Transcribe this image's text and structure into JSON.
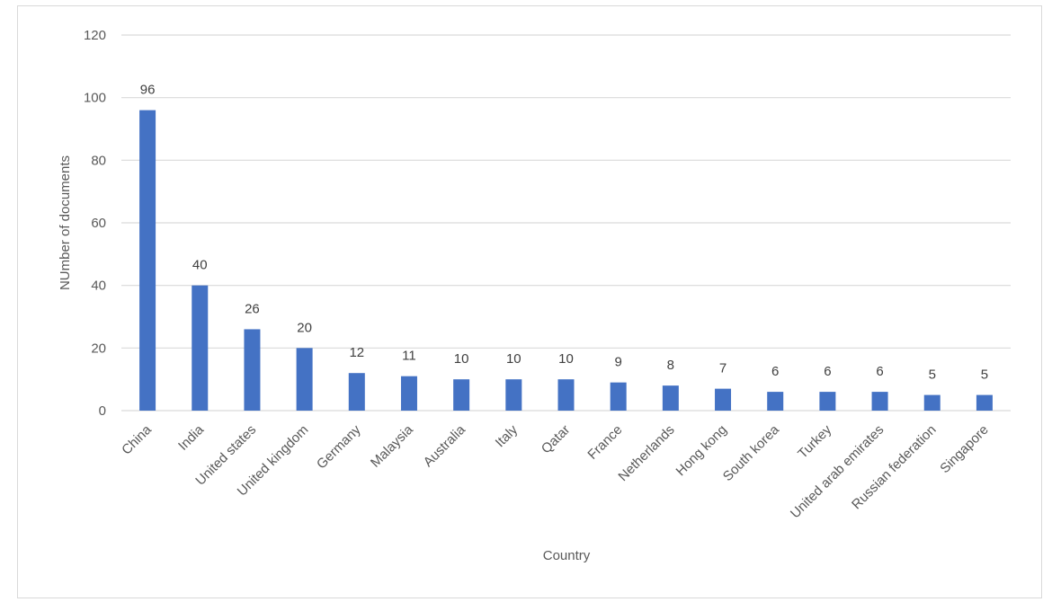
{
  "chart_data": {
    "type": "bar",
    "title": "",
    "xlabel": "Country",
    "ylabel": "NUmber of documents",
    "ylim": [
      0,
      120
    ],
    "yticks": [
      0,
      20,
      40,
      60,
      80,
      100,
      120
    ],
    "grid": true,
    "legend": "none",
    "categories": [
      "China",
      "India",
      "United states",
      "United kingdom",
      "Germany",
      "Malaysia",
      "Australia",
      "Italy",
      "Qatar",
      "France",
      "Netherlands",
      "Hong kong",
      "South korea",
      "Turkey",
      "United arab emirates",
      "Russian federation",
      "Singapore"
    ],
    "values": [
      96,
      40,
      26,
      20,
      12,
      11,
      10,
      10,
      10,
      9,
      8,
      7,
      6,
      6,
      6,
      5,
      5
    ],
    "colors": {
      "bar": "#4472c4",
      "grid": "#d9d9d9",
      "text": "#595959"
    }
  }
}
